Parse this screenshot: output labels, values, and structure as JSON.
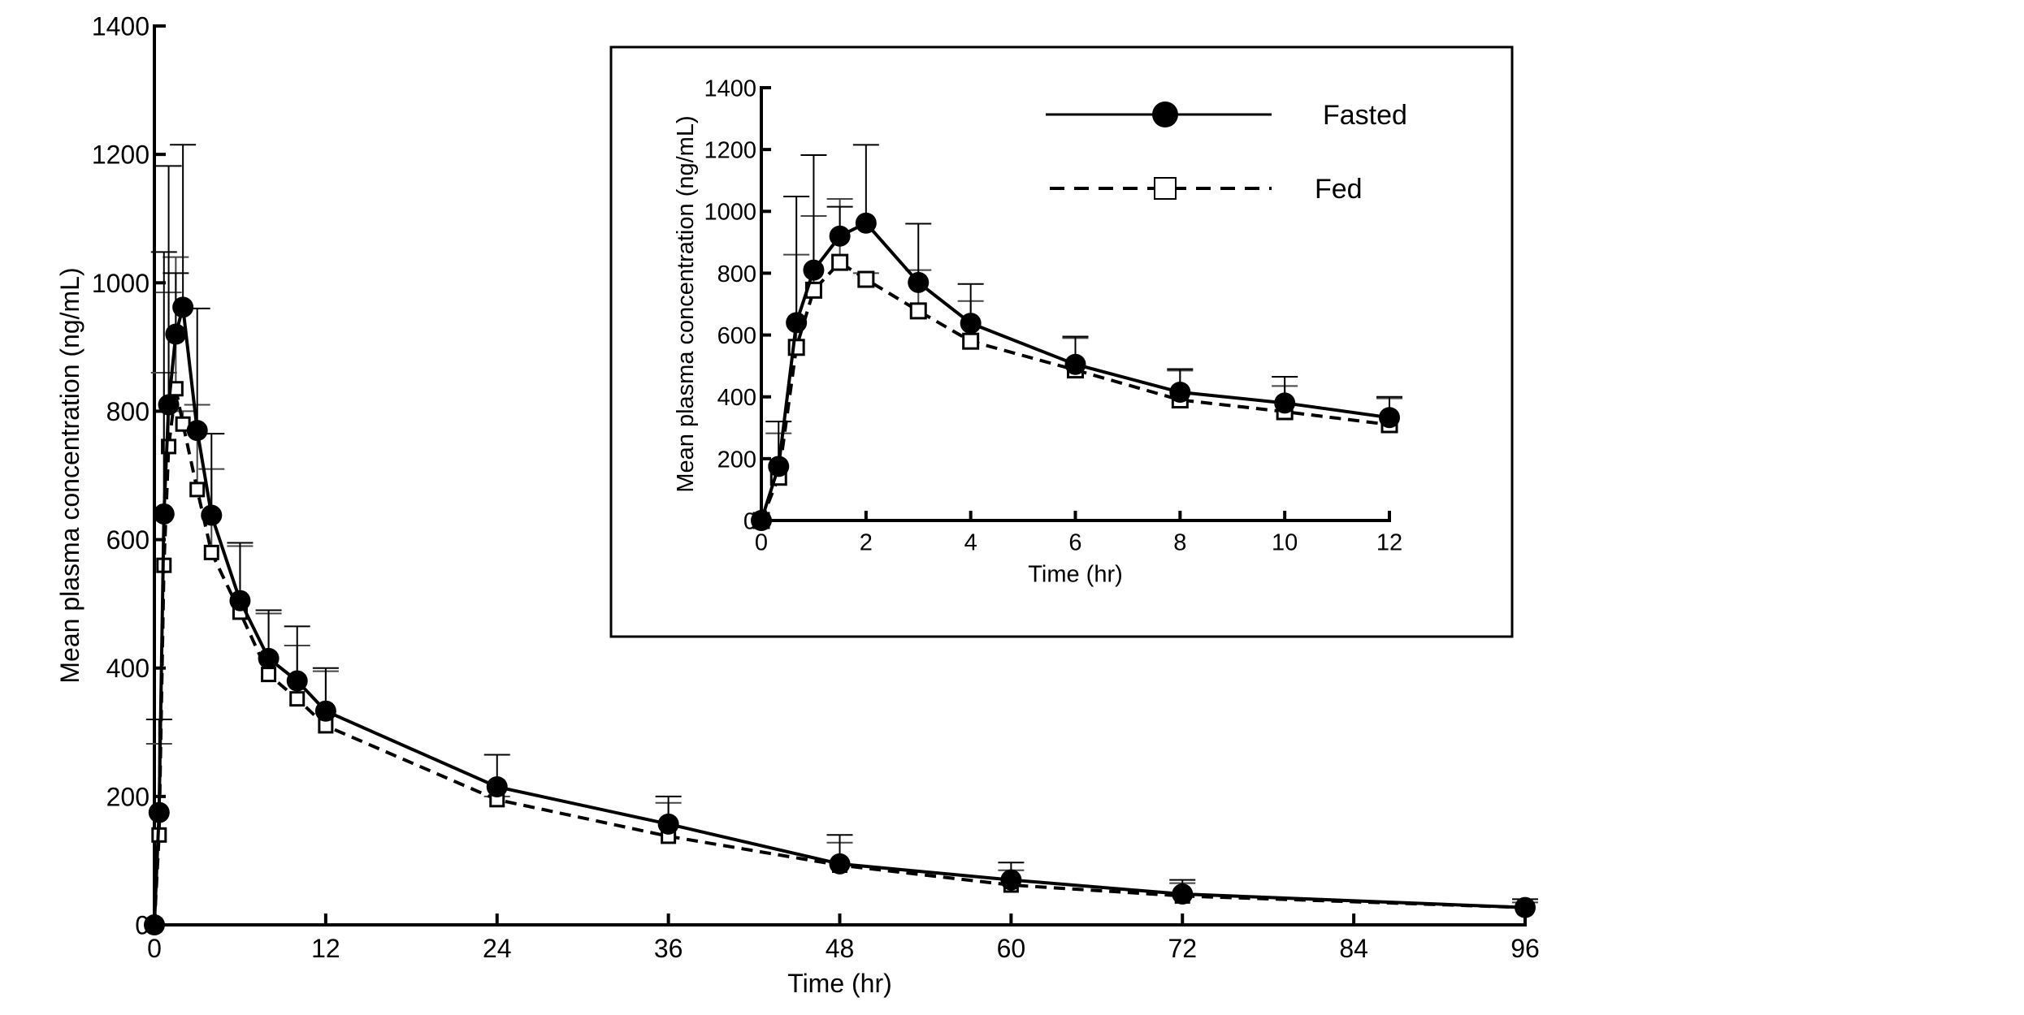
{
  "chart_data": [
    {
      "type": "line",
      "panel": "main",
      "xlabel": "Time (hr)",
      "ylabel": "Mean plasma concentration (ng/mL)",
      "xlim": [
        0,
        96
      ],
      "ylim": [
        0,
        1400
      ],
      "xticks": [
        0,
        12,
        24,
        36,
        48,
        60,
        72,
        84,
        96
      ],
      "yticks": [
        0,
        200,
        400,
        600,
        800,
        1000,
        1200,
        1400
      ],
      "grid": false,
      "error_bars": "upper SD",
      "series": [
        {
          "name": "Fasted",
          "marker": "filled-circle",
          "line": "solid",
          "x": [
            0,
            0.33,
            0.67,
            1,
            1.5,
            2,
            3,
            4,
            6,
            8,
            10,
            12,
            24,
            36,
            48,
            60,
            72,
            96
          ],
          "y": [
            0,
            175,
            640,
            810,
            920,
            962,
            770,
            638,
            505,
            415,
            380,
            333,
            215,
            157,
            95,
            70,
            48,
            27
          ],
          "err_upper": [
            0,
            320,
            1048,
            1182,
            1015,
            1215,
            960,
            765,
            595,
            490,
            465,
            400,
            265,
            200,
            140,
            97,
            70,
            40
          ]
        },
        {
          "name": "Fed",
          "marker": "open-square",
          "line": "dashed",
          "x": [
            0,
            0.33,
            0.67,
            1,
            1.5,
            2,
            3,
            4,
            6,
            8,
            10,
            12,
            24,
            36,
            48,
            60,
            72,
            96
          ],
          "y": [
            0,
            140,
            560,
            745,
            835,
            780,
            678,
            580,
            487,
            390,
            352,
            310,
            195,
            138,
            93,
            62,
            45,
            27
          ],
          "err_upper": [
            0,
            282,
            860,
            985,
            1040,
            800,
            810,
            710,
            590,
            485,
            435,
            395,
            200,
            190,
            128,
            85,
            65,
            35
          ]
        }
      ]
    },
    {
      "type": "line",
      "panel": "inset",
      "xlabel": "Time (hr)",
      "ylabel": "Mean plasma concentration (ng/mL)",
      "xlim": [
        0,
        12
      ],
      "ylim": [
        0,
        1400
      ],
      "xticks": [
        0,
        2,
        4,
        6,
        8,
        10,
        12
      ],
      "yticks": [
        0,
        200,
        400,
        600,
        800,
        1000,
        1200,
        1400
      ],
      "grid": false,
      "legend": {
        "position": "top-right",
        "entries": [
          "Fasted",
          "Fed"
        ]
      }
    }
  ]
}
